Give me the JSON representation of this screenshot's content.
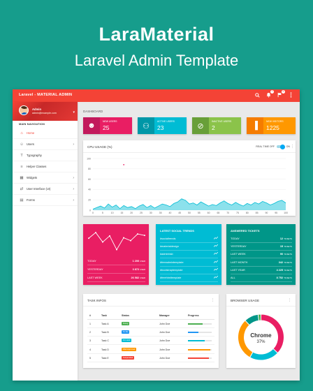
{
  "hero": {
    "title": "LaraMaterial",
    "subtitle": "Laravel Admin Template"
  },
  "topbar": {
    "title": "Laravel - MATERIAL ADMIN",
    "icons": [
      "search-icon",
      "notifications-icon",
      "flag-icon",
      "more-vert-icon"
    ],
    "badges": [
      "7",
      "9"
    ]
  },
  "sidebar": {
    "user": {
      "name": "Admin",
      "email": "admin@example.com"
    },
    "nav_header": "MAIN NAVIGATION",
    "items": [
      {
        "label": "Home",
        "icon": "home-icon",
        "active": true,
        "has_submenu": false
      },
      {
        "label": "Users",
        "icon": "person-icon",
        "active": false,
        "has_submenu": true
      },
      {
        "label": "Typography",
        "icon": "text-icon",
        "active": false,
        "has_submenu": false
      },
      {
        "label": "Helper Classes",
        "icon": "layers-icon",
        "active": false,
        "has_submenu": false
      },
      {
        "label": "Widgets",
        "icon": "widgets-icon",
        "active": false,
        "has_submenu": true
      },
      {
        "label": "User Interface (UI)",
        "icon": "swap-icon",
        "active": false,
        "has_submenu": true
      },
      {
        "label": "Forms",
        "icon": "forms-icon",
        "active": false,
        "has_submenu": true
      }
    ]
  },
  "content": {
    "breadcrumb": "DASHBOARD",
    "info_boxes": [
      {
        "label": "NEW USERS",
        "value": "25",
        "icon": "users-icon",
        "bg": "#e91e63",
        "icon_bg": "#c2185b"
      },
      {
        "label": "ACTIVE USERS",
        "value": "23",
        "icon": "group-icon",
        "bg": "#00bcd4",
        "icon_bg": "#0097a7"
      },
      {
        "label": "INACTIVE USERS",
        "value": "2",
        "icon": "block-icon",
        "bg": "#8bc34a",
        "icon_bg": "#689f38"
      },
      {
        "label": "NEW VISITORS",
        "value": "1225",
        "icon": "chart-icon",
        "bg": "#ff9800",
        "icon_bg": "#f57c00"
      }
    ],
    "cpu": {
      "title": "CPU USAGE (%)",
      "realtime_label": "REAL TIME",
      "off_label": "OFF",
      "on_label": "ON"
    },
    "chart_data": [
      {
        "type": "area",
        "title": "CPU USAGE (%)",
        "ylim": [
          0,
          100
        ],
        "y_ticks": [
          "0",
          "20",
          "40",
          "60",
          "80",
          "100"
        ],
        "x_ticks": [
          "0",
          "5",
          "10",
          "15",
          "20",
          "25",
          "30",
          "35",
          "40",
          "45",
          "50",
          "55",
          "60",
          "65",
          "70",
          "75",
          "80",
          "85",
          "90",
          "95",
          "100"
        ],
        "x": [
          0,
          2,
          4,
          6,
          8,
          10,
          12,
          14,
          16,
          18,
          20,
          22,
          24,
          26,
          28,
          30,
          32,
          34,
          36,
          38,
          40,
          42,
          44,
          46,
          48,
          50,
          52,
          54,
          56,
          58,
          60,
          62,
          64,
          66,
          68,
          70,
          72,
          74,
          76,
          78,
          80,
          82,
          84,
          86,
          88,
          90,
          92,
          94,
          96,
          98,
          100
        ],
        "values": [
          2,
          5,
          8,
          4,
          12,
          6,
          10,
          3,
          9,
          5,
          7,
          3,
          8,
          11,
          5,
          9,
          4,
          8,
          12,
          10,
          7,
          13,
          16,
          22,
          19,
          12,
          14,
          10,
          16,
          12,
          8,
          11,
          9,
          14,
          18,
          13,
          10,
          15,
          11,
          8,
          13,
          10,
          15,
          12,
          17,
          14,
          10,
          13,
          17,
          19,
          14
        ],
        "color": "#00bcd4"
      },
      {
        "type": "line",
        "x": [
          0,
          1,
          2,
          3,
          4,
          5,
          6,
          7,
          8
        ],
        "values": [
          62,
          74,
          54,
          67,
          38,
          63,
          57,
          71,
          68
        ],
        "color": "#ffffff"
      }
    ],
    "summary": {
      "rows": [
        {
          "label": "TODAY",
          "value": "1 200",
          "unit": "USER"
        },
        {
          "label": "YESTERDAY",
          "value": "3 872",
          "unit": "USER"
        },
        {
          "label": "LAST WEEK",
          "value": "26 582",
          "unit": "USER"
        }
      ]
    },
    "social": {
      "title": "LATEST SOCIAL TRENDS",
      "rows": [
        "#socialtrends",
        "#materialdesign",
        "#adminbsb",
        "#freeadmintemplate",
        "#bootstraptemplate",
        "#freehtmltemplate"
      ]
    },
    "tickets": {
      "title": "ANSWERED TICKETS",
      "rows": [
        {
          "label": "TODAY",
          "value": "12",
          "unit": "TICKETS"
        },
        {
          "label": "YESTERDAY",
          "value": "15",
          "unit": "TICKETS"
        },
        {
          "label": "LAST WEEK",
          "value": "90",
          "unit": "TICKETS"
        },
        {
          "label": "LAST MONTH",
          "value": "342",
          "unit": "TICKETS"
        },
        {
          "label": "LAST YEAR",
          "value": "4 225",
          "unit": "TICKETS"
        },
        {
          "label": "ALL",
          "value": "8 752",
          "unit": "TICKETS"
        }
      ]
    },
    "tasks": {
      "title": "TASK INFOS",
      "headers": [
        "#",
        "Task",
        "Status",
        "Manager",
        "Progress"
      ],
      "rows": [
        {
          "n": "1",
          "task": "Task A",
          "status": "Doing",
          "status_color": "#4caf50",
          "manager": "John Doe",
          "progress": 0.62,
          "bar_color": "#4caf50"
        },
        {
          "n": "2",
          "task": "Task B",
          "status": "To Do",
          "status_color": "#2196f3",
          "manager": "John Doe",
          "progress": 0.45,
          "bar_color": "#2196f3"
        },
        {
          "n": "3",
          "task": "Task C",
          "status": "On Hold",
          "status_color": "#00bcd4",
          "manager": "John Doe",
          "progress": 0.72,
          "bar_color": "#00bcd4"
        },
        {
          "n": "4",
          "task": "Task D",
          "status": "Wait Approvel",
          "status_color": "#ff9800",
          "manager": "John Doe",
          "progress": 0.95,
          "bar_color": "#ff9800"
        },
        {
          "n": "5",
          "task": "Task E",
          "status": "Suspended",
          "status_color": "#f44336",
          "manager": "John Doe",
          "progress": 0.87,
          "bar_color": "#f44336"
        }
      ]
    },
    "browser": {
      "title": "BROWSER USAGE",
      "center_label": "Chrome",
      "center_value": "37%",
      "chart_data": {
        "type": "pie",
        "values": [
          37,
          21,
          30,
          10,
          2
        ],
        "colors": [
          "#e91e63",
          "#00bcd4",
          "#ff9800",
          "#009688",
          "#4caf50"
        ]
      }
    }
  }
}
